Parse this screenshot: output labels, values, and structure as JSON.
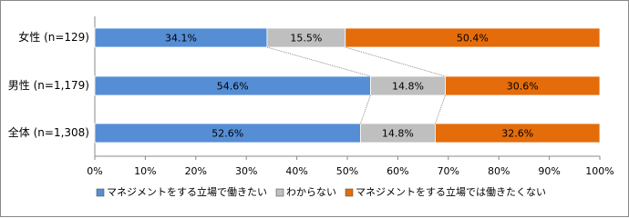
{
  "chart_data": {
    "type": "bar",
    "categories": [
      "女性 (n=129)",
      "男性 (n=1,179)",
      "全体 (n=1,308)"
    ],
    "series": [
      {
        "name": "マネジメントをする立場で働きたい",
        "color": "#558ed5",
        "values": [
          34.1,
          54.6,
          52.6
        ],
        "value_labels": [
          "34.1%",
          "54.6%",
          "52.6%"
        ]
      },
      {
        "name": "わからない",
        "color": "#bfbfbf",
        "values": [
          15.5,
          14.8,
          14.8
        ],
        "value_labels": [
          "15.5%",
          "14.8%",
          "14.8%"
        ]
      },
      {
        "name": "マネジメントをする立場では働きたくない",
        "color": "#e46c0a",
        "values": [
          50.4,
          30.6,
          32.6
        ],
        "value_labels": [
          "50.4%",
          "30.6%",
          "32.6%"
        ]
      }
    ],
    "xlim": [
      0,
      100
    ],
    "xticks": [
      {
        "value": 0,
        "label": "0%"
      },
      {
        "value": 10,
        "label": "10%"
      },
      {
        "value": 20,
        "label": "20%"
      },
      {
        "value": 30,
        "label": "30%"
      },
      {
        "value": 40,
        "label": "40%"
      },
      {
        "value": 50,
        "label": "50%"
      },
      {
        "value": 60,
        "label": "60%"
      },
      {
        "value": 70,
        "label": "70%"
      },
      {
        "value": 80,
        "label": "80%"
      },
      {
        "value": 90,
        "label": "90%"
      },
      {
        "value": 100,
        "label": "100%"
      }
    ],
    "legend": "bottom"
  }
}
